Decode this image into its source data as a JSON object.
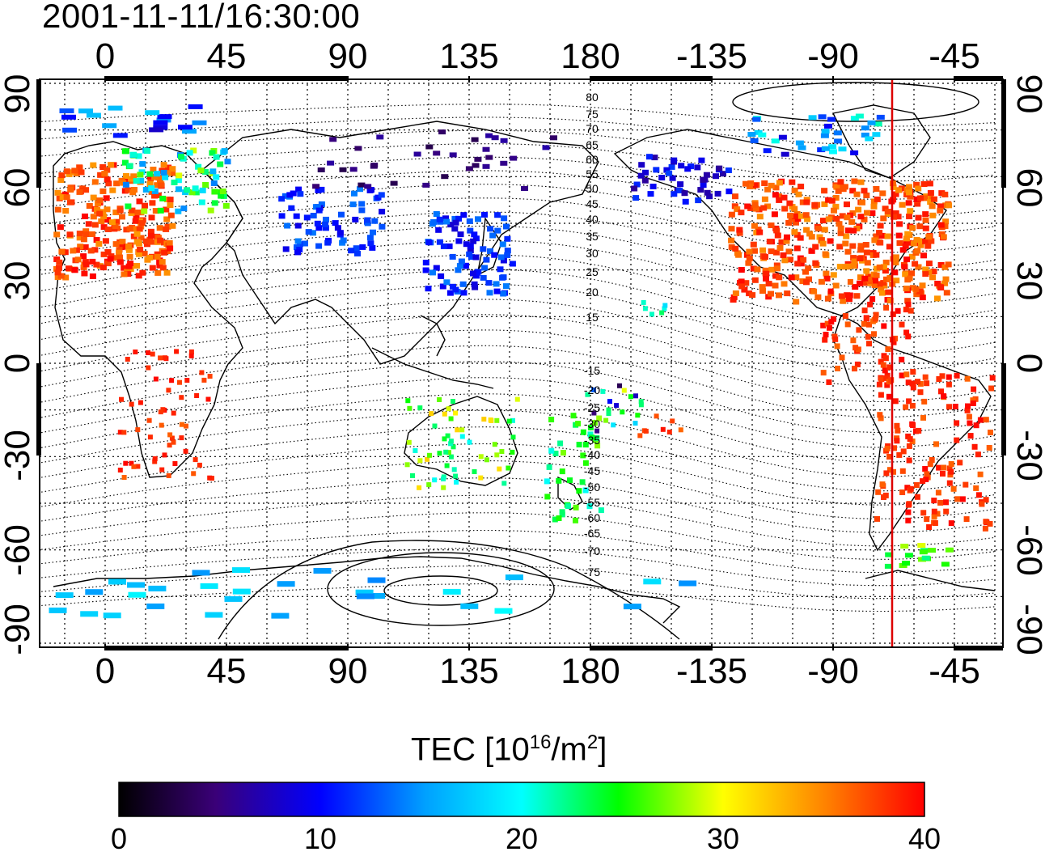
{
  "title": "2001-11-11/16:30:00",
  "map": {
    "top_lon_labels": [
      "0",
      "45",
      "90",
      "135",
      "180",
      "-135",
      "-90",
      "-45"
    ],
    "bottom_lon_labels": [
      "0",
      "45",
      "90",
      "135",
      "180",
      "-135",
      "-90",
      "-45"
    ],
    "left_lat_labels": [
      "90",
      "60",
      "30",
      "0",
      "-30",
      "-60",
      "-90"
    ],
    "right_lat_labels": [
      "90",
      "60",
      "30",
      "0",
      "-30",
      "-60",
      "-90"
    ],
    "contour_labels": [
      "80",
      "75",
      "70",
      "65",
      "60",
      "55",
      "50",
      "45",
      "40",
      "35",
      "30",
      "25",
      "20",
      "15",
      "-15",
      "-20",
      "-25",
      "-30",
      "-35",
      "-40",
      "-45",
      "-50",
      "-55",
      "-60",
      "-65",
      "-70",
      "-75"
    ],
    "terminator_line_color": "#dd0000",
    "land_outline_color": "#000000",
    "lon_range": [
      -20,
      325
    ],
    "lat_range": [
      -93,
      93
    ]
  },
  "colorbar": {
    "title_prefix": "TEC  [10",
    "title_exp": "16",
    "title_mid": "/m",
    "title_exp2": "2",
    "title_suffix": "]",
    "ticks": [
      "0",
      "10",
      "20",
      "30",
      "40"
    ],
    "range": [
      0,
      40
    ],
    "colors": [
      "#000000",
      "#3a0078",
      "#0000ff",
      "#00ffff",
      "#00ff00",
      "#ffff00",
      "#ff0000"
    ]
  }
}
